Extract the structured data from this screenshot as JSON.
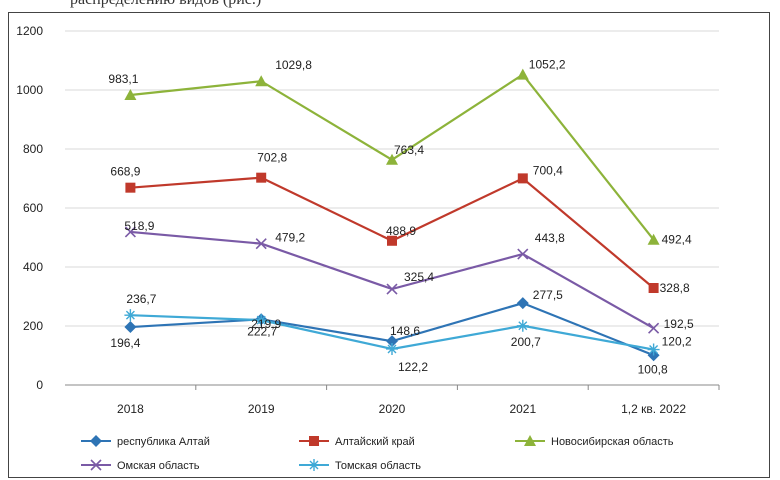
{
  "caption": "распределению видов (рис.)",
  "chart_data": {
    "type": "line",
    "categories": [
      "2018",
      "2019",
      "2020",
      "2021",
      "1,2 кв. 2022"
    ],
    "ylim": [
      0,
      1200
    ],
    "yticks": [
      "0",
      "200",
      "400",
      "600",
      "800",
      "1000",
      "1200"
    ],
    "grid": true,
    "legend_position": "bottom",
    "series": [
      {
        "name": "республика Алтай",
        "values": [
          196.4,
          222.7,
          148.6,
          277.5,
          100.8
        ],
        "labels": [
          "196,4",
          "222,7",
          "148,6",
          "277,5",
          "100,8"
        ],
        "color": "#2e74b5",
        "marker": "diamond"
      },
      {
        "name": "Алтайский край",
        "values": [
          668.9,
          702.8,
          488.9,
          700.4,
          328.8
        ],
        "labels": [
          "668,9",
          "702,8",
          "488,9",
          "700,4",
          "328,8"
        ],
        "color": "#c0392b",
        "marker": "square"
      },
      {
        "name": "Новосибирская область",
        "values": [
          983.1,
          1029.8,
          763.4,
          1052.2,
          492.4
        ],
        "labels": [
          "983,1",
          "1029,8",
          "763,4",
          "1052,2",
          "492,4"
        ],
        "color": "#8db33a",
        "marker": "triangle"
      },
      {
        "name": "Омская область",
        "values": [
          518.9,
          479.2,
          325.4,
          443.8,
          192.5
        ],
        "labels": [
          "518,9",
          "479,2",
          "325,4",
          "443,8",
          "192,5"
        ],
        "color": "#7a5aa6",
        "marker": "x"
      },
      {
        "name": "Томская область",
        "values": [
          236.7,
          219.9,
          122.2,
          200.7,
          120.2
        ],
        "labels": [
          "236,7",
          "219,9",
          "122,2",
          "200,7",
          "120,2"
        ],
        "color": "#3fa9d6",
        "marker": "star"
      }
    ]
  }
}
